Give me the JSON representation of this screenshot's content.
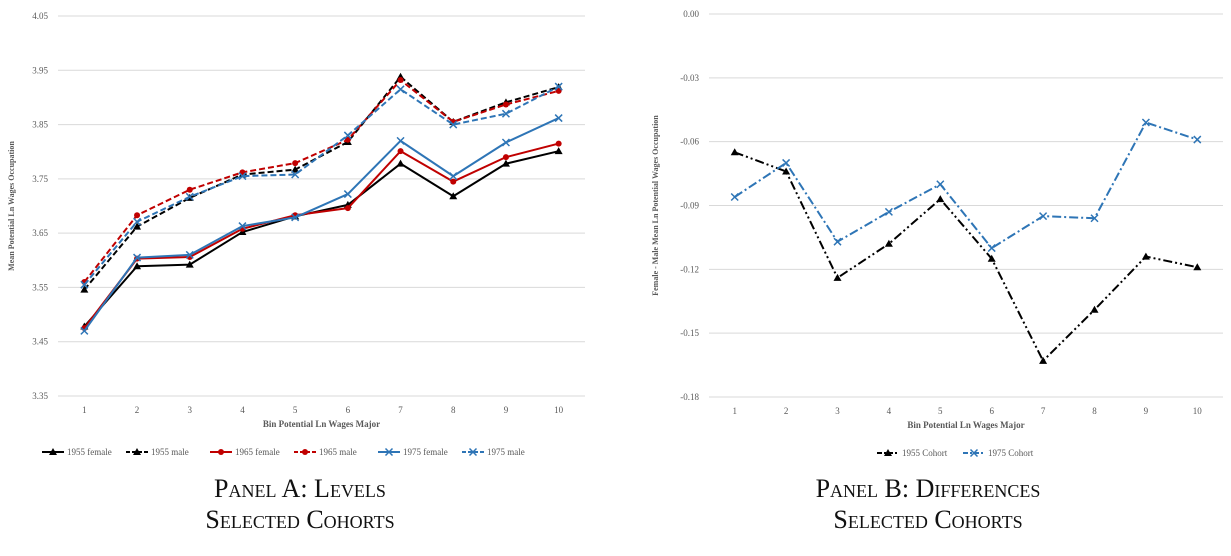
{
  "chart_data": [
    {
      "type": "line",
      "panel_caption_line1": "Panel A: Levels",
      "panel_caption_line2": "Selected Cohorts",
      "xlabel": "Bin Potential Ln Wages Major",
      "ylabel": "Mean Potential Ln Wages Occupation",
      "categories": [
        "1",
        "2",
        "3",
        "4",
        "5",
        "6",
        "7",
        "8",
        "9",
        "10"
      ],
      "ylim": [
        3.35,
        4.05
      ],
      "yticks": [
        "3.35",
        "3.45",
        "3.55",
        "3.65",
        "3.75",
        "3.85",
        "3.95",
        "4.05"
      ],
      "grid": true,
      "legend_position": "bottom",
      "series": [
        {
          "name": "1955 female",
          "color": "#000000",
          "dash": "solid",
          "marker": "triangle",
          "values": [
            3.478,
            3.589,
            3.592,
            3.652,
            3.681,
            3.702,
            3.778,
            3.718,
            3.778,
            3.801
          ]
        },
        {
          "name": "1955 male",
          "color": "#000000",
          "dash": "dashed",
          "marker": "triangle",
          "values": [
            3.546,
            3.662,
            3.715,
            3.758,
            3.767,
            3.818,
            3.938,
            3.855,
            3.891,
            3.919
          ]
        },
        {
          "name": "1965 female",
          "color": "#c00000",
          "dash": "solid",
          "marker": "circle",
          "values": [
            3.475,
            3.603,
            3.606,
            3.658,
            3.683,
            3.696,
            3.801,
            3.745,
            3.79,
            3.815
          ]
        },
        {
          "name": "1965 male",
          "color": "#c00000",
          "dash": "dashed",
          "marker": "circle",
          "values": [
            3.56,
            3.683,
            3.73,
            3.762,
            3.779,
            3.822,
            3.932,
            3.855,
            3.887,
            3.912
          ]
        },
        {
          "name": "1975 female",
          "color": "#2e75b6",
          "dash": "solid",
          "marker": "x",
          "values": [
            3.47,
            3.605,
            3.61,
            3.663,
            3.679,
            3.722,
            3.82,
            3.755,
            3.817,
            3.862
          ]
        },
        {
          "name": "1975 male",
          "color": "#2e75b6",
          "dash": "dashed",
          "marker": "x",
          "values": [
            3.555,
            3.671,
            3.717,
            3.755,
            3.758,
            3.83,
            3.915,
            3.85,
            3.87,
            3.92
          ]
        }
      ]
    },
    {
      "type": "line",
      "panel_caption_line1": "Panel B: Differences",
      "panel_caption_line2": "Selected Cohorts",
      "xlabel": "Bin Potential Ln Wages Major",
      "ylabel": "Female - Male Mean Ln Potential Wages Occupation",
      "categories": [
        "1",
        "2",
        "3",
        "4",
        "5",
        "6",
        "7",
        "8",
        "9",
        "10"
      ],
      "ylim": [
        -0.18,
        0.0
      ],
      "yticks": [
        "-0.18",
        "-0.15",
        "-0.12",
        "-0.09",
        "-0.06",
        "-0.03",
        "0.00"
      ],
      "grid": true,
      "legend_position": "bottom",
      "series": [
        {
          "name": "1955 Cohort",
          "color": "#000000",
          "dash": "dashdotdot",
          "marker": "triangle",
          "values": [
            -0.065,
            -0.074,
            -0.124,
            -0.108,
            -0.087,
            -0.115,
            -0.163,
            -0.139,
            -0.114,
            -0.119
          ]
        },
        {
          "name": "1975 Cohort",
          "color": "#2e75b6",
          "dash": "dashdot",
          "marker": "x",
          "values": [
            -0.086,
            -0.07,
            -0.107,
            -0.093,
            -0.08,
            -0.11,
            -0.095,
            -0.096,
            -0.051,
            -0.059
          ]
        }
      ]
    }
  ]
}
